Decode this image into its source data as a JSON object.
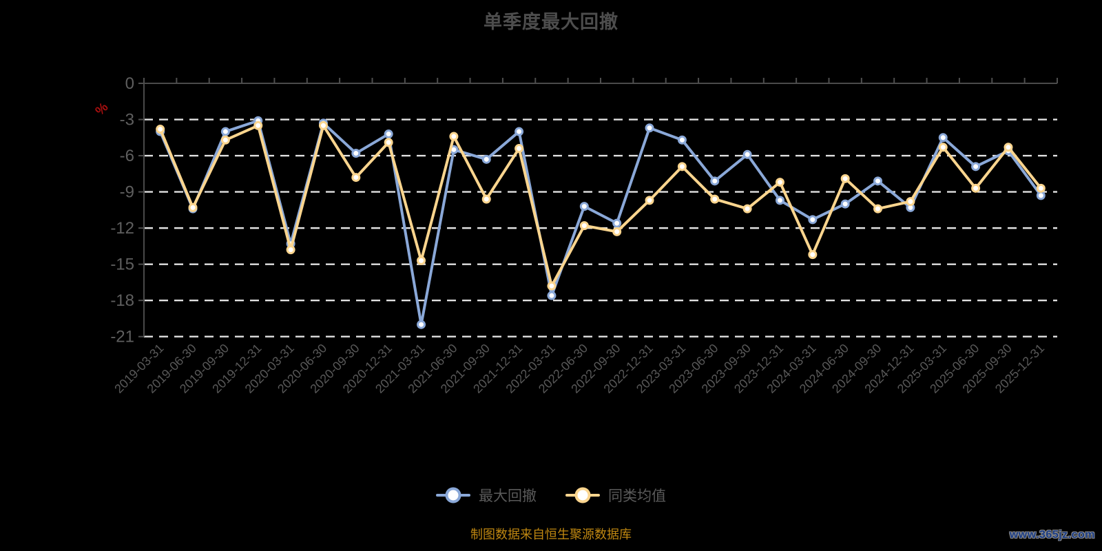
{
  "title": "单季度最大回撤",
  "axes": {
    "y_unit": "%",
    "y_ticks": [
      0,
      -3,
      -6,
      -9,
      -12,
      -15,
      -18,
      -21
    ],
    "x_labels": [
      "2019-03-31",
      "2019-06-30",
      "2019-09-30",
      "2019-12-31",
      "2020-03-31",
      "2020-06-30",
      "2020-09-30",
      "2020-12-31",
      "2021-03-31",
      "2021-06-30",
      "2021-09-30",
      "2021-12-31",
      "2022-03-31",
      "2022-06-30",
      "2022-09-30",
      "2022-12-31",
      "2023-03-31",
      "2023-06-30",
      "2023-09-30",
      "2023-12-31",
      "2024-03-31",
      "2024-06-30",
      "2024-09-30",
      "2024-12-31",
      "2025-03-31",
      "2025-06-30",
      "2025-09-30",
      "2025-12-31"
    ]
  },
  "legend": {
    "items": [
      {
        "label": "最大回撤"
      },
      {
        "label": "同类均值"
      }
    ]
  },
  "footer": {
    "source_note": "制图数据来自恒生聚源数据库",
    "watermark": "www.365jz.com"
  },
  "colors": {
    "background": "#000000",
    "title": "#4d4d4d",
    "unit_label": "#a80f0f",
    "axis_line": "#4a4a4a",
    "tick": "#4f4f4f",
    "y_tick_label": "#5f5f5f",
    "x_tick_label": "#585858",
    "gridline": "#e2e2e2",
    "legend_text": "#5a5a5a",
    "source_note": "#bf8711",
    "watermark_fill": "#1a3c85",
    "series_max_drawdown": "#8aa8d8",
    "series_category_avg": "#fbd58e",
    "marker_fill": "#ffffff"
  },
  "chart_data": {
    "type": "line",
    "title": "单季度最大回撤",
    "ylabel": "%",
    "ylim": [
      -21,
      0
    ],
    "y_ticks": [
      0,
      -3,
      -6,
      -9,
      -12,
      -15,
      -18,
      -21
    ],
    "grid": "horizontal-dashed-white",
    "legend_position": "bottom-center",
    "x": [
      "2019-03-31",
      "2019-06-30",
      "2019-09-30",
      "2019-12-31",
      "2020-03-31",
      "2020-06-30",
      "2020-09-30",
      "2020-12-31",
      "2021-03-31",
      "2021-06-30",
      "2021-09-30",
      "2021-12-31",
      "2022-03-31",
      "2022-06-30",
      "2022-09-30",
      "2022-12-31",
      "2023-03-31",
      "2023-06-30",
      "2023-09-30",
      "2023-12-31",
      "2024-03-31",
      "2024-06-30",
      "2024-09-30",
      "2024-12-31",
      "2025-03-31",
      "2025-06-30",
      "2025-09-30",
      "2025-12-31"
    ],
    "series": [
      {
        "name": "最大回撤",
        "color": "#8aa8d8",
        "values": [
          -4.0,
          -10.4,
          -4.0,
          -3.1,
          -13.3,
          -3.3,
          -5.8,
          -4.2,
          -20.0,
          -5.5,
          -6.3,
          -4.0,
          -17.6,
          -10.2,
          -11.6,
          -3.7,
          -4.7,
          -8.1,
          -5.9,
          -9.7,
          -11.3,
          -10.0,
          -8.1,
          -10.3,
          -4.5,
          -6.9,
          -5.6,
          -9.3
        ]
      },
      {
        "name": "同类均值",
        "color": "#fbd58e",
        "values": [
          -3.8,
          -10.3,
          -4.7,
          -3.5,
          -13.8,
          -3.5,
          -7.8,
          -4.9,
          -14.7,
          -4.4,
          -9.6,
          -5.4,
          -16.8,
          -11.8,
          -12.3,
          -9.7,
          -6.9,
          -9.6,
          -10.4,
          -8.2,
          -14.2,
          -7.9,
          -10.4,
          -9.8,
          -5.3,
          -8.7,
          -5.3,
          -8.7
        ]
      }
    ]
  }
}
